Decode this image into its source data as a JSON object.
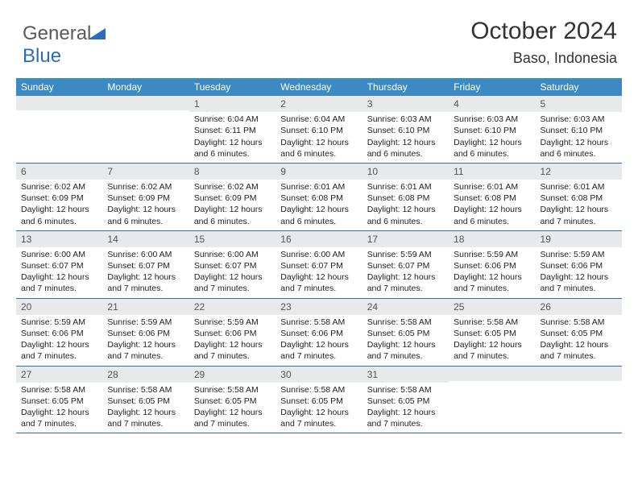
{
  "brand": {
    "text1": "General",
    "text2": "Blue"
  },
  "header": {
    "title": "October 2024",
    "location": "Baso, Indonesia"
  },
  "colors": {
    "header_bg": "#3b8ac4",
    "band_bg": "#e7e9eb",
    "rule": "#2a6fb5",
    "text": "#222222"
  },
  "calendar": {
    "type": "table",
    "day_headers": [
      "Sunday",
      "Monday",
      "Tuesday",
      "Wednesday",
      "Thursday",
      "Friday",
      "Saturday"
    ],
    "weeks": [
      [
        null,
        null,
        {
          "n": "1",
          "sr": "Sunrise: 6:04 AM",
          "ss": "Sunset: 6:11 PM",
          "dl": "Daylight: 12 hours and 6 minutes."
        },
        {
          "n": "2",
          "sr": "Sunrise: 6:04 AM",
          "ss": "Sunset: 6:10 PM",
          "dl": "Daylight: 12 hours and 6 minutes."
        },
        {
          "n": "3",
          "sr": "Sunrise: 6:03 AM",
          "ss": "Sunset: 6:10 PM",
          "dl": "Daylight: 12 hours and 6 minutes."
        },
        {
          "n": "4",
          "sr": "Sunrise: 6:03 AM",
          "ss": "Sunset: 6:10 PM",
          "dl": "Daylight: 12 hours and 6 minutes."
        },
        {
          "n": "5",
          "sr": "Sunrise: 6:03 AM",
          "ss": "Sunset: 6:10 PM",
          "dl": "Daylight: 12 hours and 6 minutes."
        }
      ],
      [
        {
          "n": "6",
          "sr": "Sunrise: 6:02 AM",
          "ss": "Sunset: 6:09 PM",
          "dl": "Daylight: 12 hours and 6 minutes."
        },
        {
          "n": "7",
          "sr": "Sunrise: 6:02 AM",
          "ss": "Sunset: 6:09 PM",
          "dl": "Daylight: 12 hours and 6 minutes."
        },
        {
          "n": "8",
          "sr": "Sunrise: 6:02 AM",
          "ss": "Sunset: 6:09 PM",
          "dl": "Daylight: 12 hours and 6 minutes."
        },
        {
          "n": "9",
          "sr": "Sunrise: 6:01 AM",
          "ss": "Sunset: 6:08 PM",
          "dl": "Daylight: 12 hours and 6 minutes."
        },
        {
          "n": "10",
          "sr": "Sunrise: 6:01 AM",
          "ss": "Sunset: 6:08 PM",
          "dl": "Daylight: 12 hours and 6 minutes."
        },
        {
          "n": "11",
          "sr": "Sunrise: 6:01 AM",
          "ss": "Sunset: 6:08 PM",
          "dl": "Daylight: 12 hours and 6 minutes."
        },
        {
          "n": "12",
          "sr": "Sunrise: 6:01 AM",
          "ss": "Sunset: 6:08 PM",
          "dl": "Daylight: 12 hours and 7 minutes."
        }
      ],
      [
        {
          "n": "13",
          "sr": "Sunrise: 6:00 AM",
          "ss": "Sunset: 6:07 PM",
          "dl": "Daylight: 12 hours and 7 minutes."
        },
        {
          "n": "14",
          "sr": "Sunrise: 6:00 AM",
          "ss": "Sunset: 6:07 PM",
          "dl": "Daylight: 12 hours and 7 minutes."
        },
        {
          "n": "15",
          "sr": "Sunrise: 6:00 AM",
          "ss": "Sunset: 6:07 PM",
          "dl": "Daylight: 12 hours and 7 minutes."
        },
        {
          "n": "16",
          "sr": "Sunrise: 6:00 AM",
          "ss": "Sunset: 6:07 PM",
          "dl": "Daylight: 12 hours and 7 minutes."
        },
        {
          "n": "17",
          "sr": "Sunrise: 5:59 AM",
          "ss": "Sunset: 6:07 PM",
          "dl": "Daylight: 12 hours and 7 minutes."
        },
        {
          "n": "18",
          "sr": "Sunrise: 5:59 AM",
          "ss": "Sunset: 6:06 PM",
          "dl": "Daylight: 12 hours and 7 minutes."
        },
        {
          "n": "19",
          "sr": "Sunrise: 5:59 AM",
          "ss": "Sunset: 6:06 PM",
          "dl": "Daylight: 12 hours and 7 minutes."
        }
      ],
      [
        {
          "n": "20",
          "sr": "Sunrise: 5:59 AM",
          "ss": "Sunset: 6:06 PM",
          "dl": "Daylight: 12 hours and 7 minutes."
        },
        {
          "n": "21",
          "sr": "Sunrise: 5:59 AM",
          "ss": "Sunset: 6:06 PM",
          "dl": "Daylight: 12 hours and 7 minutes."
        },
        {
          "n": "22",
          "sr": "Sunrise: 5:59 AM",
          "ss": "Sunset: 6:06 PM",
          "dl": "Daylight: 12 hours and 7 minutes."
        },
        {
          "n": "23",
          "sr": "Sunrise: 5:58 AM",
          "ss": "Sunset: 6:06 PM",
          "dl": "Daylight: 12 hours and 7 minutes."
        },
        {
          "n": "24",
          "sr": "Sunrise: 5:58 AM",
          "ss": "Sunset: 6:05 PM",
          "dl": "Daylight: 12 hours and 7 minutes."
        },
        {
          "n": "25",
          "sr": "Sunrise: 5:58 AM",
          "ss": "Sunset: 6:05 PM",
          "dl": "Daylight: 12 hours and 7 minutes."
        },
        {
          "n": "26",
          "sr": "Sunrise: 5:58 AM",
          "ss": "Sunset: 6:05 PM",
          "dl": "Daylight: 12 hours and 7 minutes."
        }
      ],
      [
        {
          "n": "27",
          "sr": "Sunrise: 5:58 AM",
          "ss": "Sunset: 6:05 PM",
          "dl": "Daylight: 12 hours and 7 minutes."
        },
        {
          "n": "28",
          "sr": "Sunrise: 5:58 AM",
          "ss": "Sunset: 6:05 PM",
          "dl": "Daylight: 12 hours and 7 minutes."
        },
        {
          "n": "29",
          "sr": "Sunrise: 5:58 AM",
          "ss": "Sunset: 6:05 PM",
          "dl": "Daylight: 12 hours and 7 minutes."
        },
        {
          "n": "30",
          "sr": "Sunrise: 5:58 AM",
          "ss": "Sunset: 6:05 PM",
          "dl": "Daylight: 12 hours and 7 minutes."
        },
        {
          "n": "31",
          "sr": "Sunrise: 5:58 AM",
          "ss": "Sunset: 6:05 PM",
          "dl": "Daylight: 12 hours and 7 minutes."
        },
        null,
        null
      ]
    ]
  }
}
